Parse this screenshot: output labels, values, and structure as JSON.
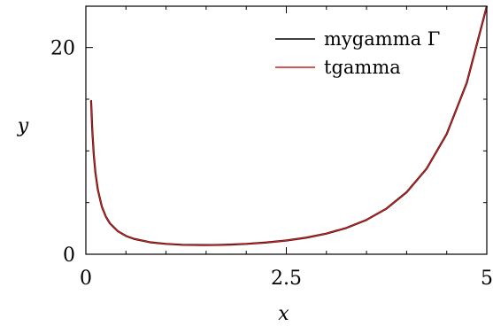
{
  "chart_data": {
    "type": "line",
    "xlabel": "x",
    "ylabel": "y",
    "xlim": [
      0,
      5
    ],
    "ylim": [
      0,
      24
    ],
    "x_ticks": [
      {
        "value": 0,
        "label": "0"
      },
      {
        "value": 2.5,
        "label": "2.5"
      },
      {
        "value": 5,
        "label": "5"
      }
    ],
    "y_ticks": [
      {
        "value": 0,
        "label": "0"
      },
      {
        "value": 20,
        "label": "20"
      }
    ],
    "x_minor_step": 0.5,
    "y_minor_step": 5,
    "grid": false,
    "legend_position": "top-right",
    "series": [
      {
        "name": "mygamma Γ",
        "color": "#000000",
        "x": [
          0.065,
          0.08,
          0.1,
          0.12,
          0.15,
          0.2,
          0.25,
          0.3,
          0.4,
          0.5,
          0.6,
          0.8,
          1.0,
          1.2,
          1.46,
          1.6,
          1.8,
          2.0,
          2.25,
          2.5,
          2.75,
          3.0,
          3.25,
          3.5,
          3.75,
          4.0,
          4.25,
          4.5,
          4.75,
          5.0
        ],
        "y": [
          14.9,
          12.0,
          9.51,
          7.84,
          6.22,
          4.59,
          3.63,
          2.99,
          2.22,
          1.77,
          1.49,
          1.16,
          1.0,
          0.918,
          0.886,
          0.894,
          0.931,
          1.0,
          1.133,
          1.329,
          1.608,
          2.0,
          2.549,
          3.323,
          4.423,
          6.0,
          8.285,
          11.63,
          16.58,
          24.0
        ]
      },
      {
        "name": "tgamma",
        "color": "#cc1f1f",
        "x": [
          0.065,
          0.08,
          0.1,
          0.12,
          0.15,
          0.2,
          0.25,
          0.3,
          0.4,
          0.5,
          0.6,
          0.8,
          1.0,
          1.2,
          1.46,
          1.6,
          1.8,
          2.0,
          2.25,
          2.5,
          2.75,
          3.0,
          3.25,
          3.5,
          3.75,
          4.0,
          4.25,
          4.5,
          4.75,
          5.0
        ],
        "y": [
          14.9,
          12.0,
          9.51,
          7.84,
          6.22,
          4.59,
          3.63,
          2.99,
          2.22,
          1.77,
          1.49,
          1.16,
          1.0,
          0.918,
          0.886,
          0.894,
          0.931,
          1.0,
          1.133,
          1.329,
          1.608,
          2.0,
          2.549,
          3.323,
          4.423,
          6.0,
          8.285,
          11.63,
          16.58,
          24.0
        ]
      }
    ]
  }
}
